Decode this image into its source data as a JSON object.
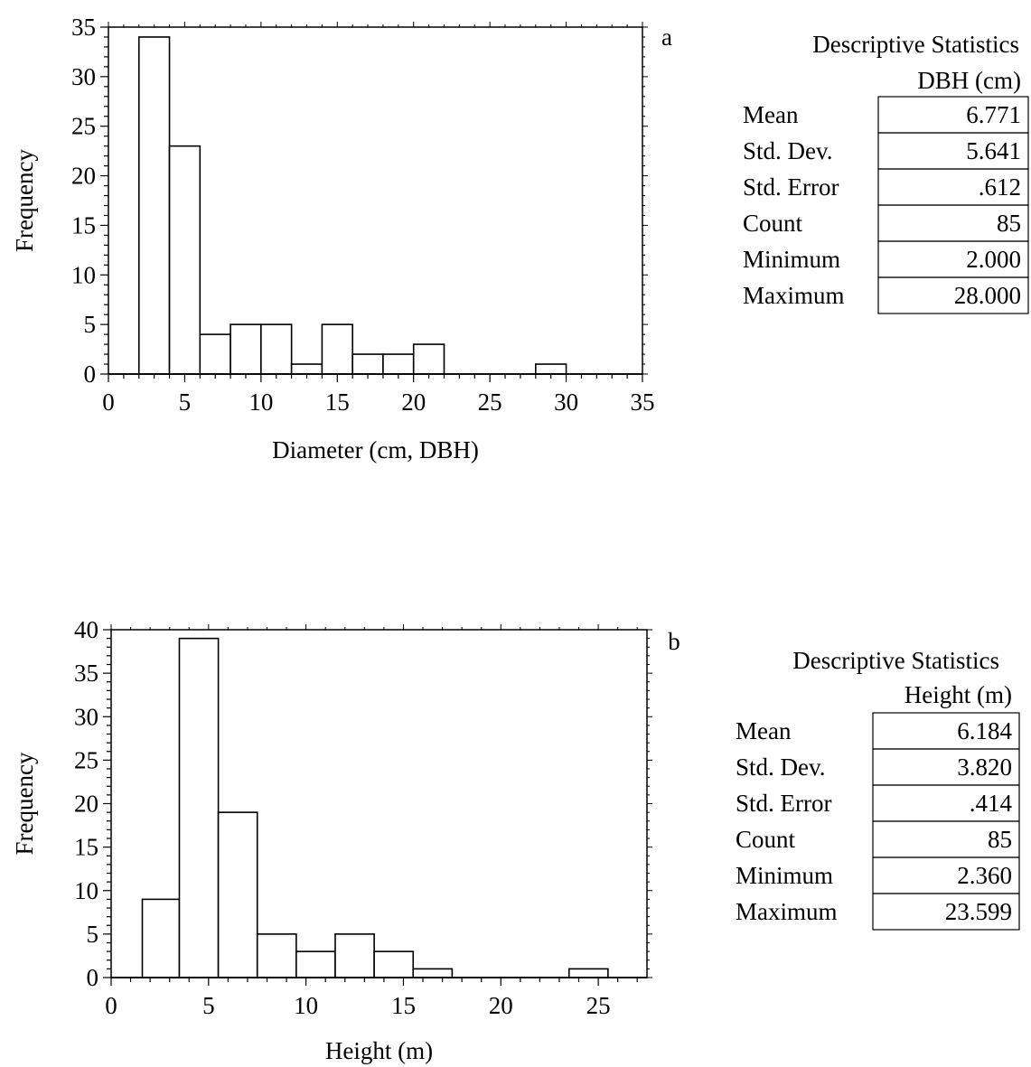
{
  "chart_data": [
    {
      "type": "bar",
      "panel_label": "a",
      "xlabel": "Diameter (cm, DBH)",
      "ylabel": "Frequency",
      "xlim": [
        0,
        35
      ],
      "ylim": [
        0,
        35
      ],
      "x_ticks": [
        "0",
        "5",
        "10",
        "15",
        "20",
        "25",
        "30",
        "35"
      ],
      "y_ticks": [
        "0",
        "5",
        "10",
        "15",
        "20",
        "25",
        "30",
        "35"
      ],
      "grid": false,
      "bins": [
        {
          "x0": 2,
          "x1": 4,
          "count": 34
        },
        {
          "x0": 4,
          "x1": 6,
          "count": 23
        },
        {
          "x0": 6,
          "x1": 8,
          "count": 4
        },
        {
          "x0": 8,
          "x1": 10,
          "count": 5
        },
        {
          "x0": 10,
          "x1": 12,
          "count": 5
        },
        {
          "x0": 12,
          "x1": 14,
          "count": 1
        },
        {
          "x0": 14,
          "x1": 16,
          "count": 5
        },
        {
          "x0": 16,
          "x1": 18,
          "count": 2
        },
        {
          "x0": 18,
          "x1": 20,
          "count": 2
        },
        {
          "x0": 20,
          "x1": 22,
          "count": 3
        },
        {
          "x0": 22,
          "x1": 24,
          "count": 0
        },
        {
          "x0": 24,
          "x1": 26,
          "count": 0
        },
        {
          "x0": 26,
          "x1": 28,
          "count": 0
        },
        {
          "x0": 28,
          "x1": 30,
          "count": 1
        }
      ],
      "stats": {
        "title": "Descriptive Statistics",
        "column": "DBH (cm)",
        "rows": [
          {
            "label": "Mean",
            "value": "6.771"
          },
          {
            "label": "Std. Dev.",
            "value": "5.641"
          },
          {
            "label": "Std. Error",
            "value": ".612"
          },
          {
            "label": "Count",
            "value": "85"
          },
          {
            "label": "Minimum",
            "value": "2.000"
          },
          {
            "label": "Maximum",
            "value": "28.000"
          }
        ]
      }
    },
    {
      "type": "bar",
      "panel_label": "b",
      "xlabel": "Height (m)",
      "ylabel": "Frequency",
      "xlim": [
        0,
        27.5
      ],
      "ylim": [
        0,
        40
      ],
      "x_ticks": [
        "0",
        "5",
        "10",
        "15",
        "20",
        "25"
      ],
      "y_ticks": [
        "0",
        "5",
        "10",
        "15",
        "20",
        "25",
        "30",
        "35",
        "40"
      ],
      "grid": false,
      "bins": [
        {
          "x0": 1.6,
          "x1": 3.5,
          "count": 9
        },
        {
          "x0": 3.5,
          "x1": 5.5,
          "count": 39
        },
        {
          "x0": 5.5,
          "x1": 7.5,
          "count": 19
        },
        {
          "x0": 7.5,
          "x1": 9.5,
          "count": 5
        },
        {
          "x0": 9.5,
          "x1": 11.5,
          "count": 3
        },
        {
          "x0": 11.5,
          "x1": 13.5,
          "count": 5
        },
        {
          "x0": 13.5,
          "x1": 15.5,
          "count": 3
        },
        {
          "x0": 15.5,
          "x1": 17.5,
          "count": 1
        },
        {
          "x0": 17.5,
          "x1": 19.5,
          "count": 0
        },
        {
          "x0": 19.5,
          "x1": 21.5,
          "count": 0
        },
        {
          "x0": 21.5,
          "x1": 23.5,
          "count": 0
        },
        {
          "x0": 23.5,
          "x1": 25.5,
          "count": 1
        }
      ],
      "stats": {
        "title": "Descriptive Statistics",
        "column": "Height (m)",
        "rows": [
          {
            "label": "Mean",
            "value": "6.184"
          },
          {
            "label": "Std. Dev.",
            "value": "3.820"
          },
          {
            "label": "Std. Error",
            "value": ".414"
          },
          {
            "label": "Count",
            "value": "85"
          },
          {
            "label": "Minimum",
            "value": "2.360"
          },
          {
            "label": "Maximum",
            "value": "23.599"
          }
        ]
      }
    }
  ]
}
